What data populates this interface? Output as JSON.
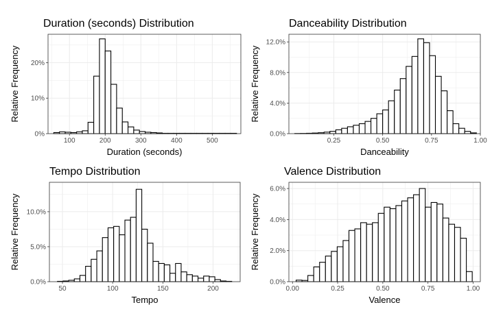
{
  "chart_data": [
    {
      "type": "bar",
      "title": "Duration (seconds) Distribution",
      "xlabel": "Duration (seconds)",
      "ylabel": "Relative Frequency",
      "xlim": [
        40,
        580
      ],
      "ylim": [
        0,
        0.28
      ],
      "xticks": [
        100,
        200,
        300,
        400,
        500
      ],
      "xtick_labels": [
        "100",
        "200",
        "300",
        "400",
        "500"
      ],
      "yticks": [
        0,
        0.1,
        0.2
      ],
      "ytick_labels": [
        "0%",
        "10%",
        "20%"
      ],
      "bin_edges": [
        56,
        72,
        88,
        104,
        120,
        136,
        152,
        168,
        184,
        200,
        216,
        232,
        248,
        264,
        280,
        296,
        312,
        328,
        344,
        360,
        376,
        392,
        408,
        424,
        440,
        456,
        472,
        488,
        504,
        520,
        536,
        552,
        568
      ],
      "values": [
        0.003,
        0.005,
        0.004,
        0.003,
        0.005,
        0.008,
        0.032,
        0.162,
        0.267,
        0.233,
        0.139,
        0.072,
        0.033,
        0.019,
        0.01,
        0.006,
        0.004,
        0.003,
        0.002,
        0.001,
        0.001,
        0.001,
        0.001,
        0.001,
        0.001,
        0.001,
        0.001,
        0.001,
        0.001,
        0.001,
        0.001,
        0.001
      ],
      "grid": true
    },
    {
      "type": "bar",
      "title": "Danceability Distribution",
      "xlabel": "Danceability",
      "ylabel": "Relative Frequency",
      "xlim": [
        0.02,
        1.0
      ],
      "ylim": [
        0,
        0.13
      ],
      "xticks": [
        0.25,
        0.5,
        0.75,
        1.0
      ],
      "xtick_labels": [
        "0.25",
        "0.50",
        "0.75",
        "1.00"
      ],
      "yticks": [
        0,
        0.04,
        0.08,
        0.12
      ],
      "ytick_labels": [
        "0.0%",
        "4.0%",
        "8.0%",
        "12.0%"
      ],
      "bin_edges": [
        0.05,
        0.08,
        0.11,
        0.14,
        0.17,
        0.2,
        0.23,
        0.26,
        0.29,
        0.32,
        0.35,
        0.38,
        0.41,
        0.44,
        0.47,
        0.5,
        0.53,
        0.56,
        0.59,
        0.62,
        0.65,
        0.68,
        0.71,
        0.74,
        0.77,
        0.8,
        0.83,
        0.86,
        0.89,
        0.92,
        0.95,
        0.98
      ],
      "values": [
        0.0002,
        0.0003,
        0.0005,
        0.0008,
        0.0012,
        0.002,
        0.003,
        0.005,
        0.007,
        0.009,
        0.011,
        0.013,
        0.016,
        0.02,
        0.026,
        0.031,
        0.043,
        0.057,
        0.072,
        0.088,
        0.101,
        0.124,
        0.119,
        0.102,
        0.075,
        0.056,
        0.03,
        0.013,
        0.007,
        0.003,
        0.001
      ],
      "grid": true
    },
    {
      "type": "bar",
      "title": "Tempo Distribution",
      "xlabel": "Tempo",
      "ylabel": "Relative Frequency",
      "xlim": [
        37,
        227
      ],
      "ylim": [
        0,
        0.142
      ],
      "xticks": [
        50,
        100,
        150,
        200
      ],
      "xtick_labels": [
        "50",
        "100",
        "150",
        "200"
      ],
      "yticks": [
        0,
        0.05,
        0.1
      ],
      "ytick_labels": [
        "0.0%",
        "5.0%",
        "10.0%"
      ],
      "bin_edges": [
        45,
        50.6,
        56.2,
        61.8,
        67.4,
        73,
        78.6,
        84.2,
        89.8,
        95.4,
        101,
        106.6,
        112.2,
        117.8,
        123.4,
        129,
        134.6,
        140.2,
        145.8,
        151.4,
        157,
        162.6,
        168.2,
        173.8,
        179.4,
        185,
        190.6,
        196.2,
        201.8,
        207.4,
        213,
        218.6
      ],
      "values": [
        0.0005,
        0.001,
        0.002,
        0.004,
        0.009,
        0.022,
        0.032,
        0.044,
        0.063,
        0.077,
        0.079,
        0.067,
        0.088,
        0.092,
        0.132,
        0.075,
        0.055,
        0.029,
        0.026,
        0.024,
        0.012,
        0.026,
        0.014,
        0.01,
        0.008,
        0.005,
        0.008,
        0.007,
        0.003,
        0.001,
        0.0005
      ],
      "grid": true
    },
    {
      "type": "bar",
      "title": "Valence Distribution",
      "xlabel": "Valence",
      "ylabel": "Relative Frequency",
      "xlim": [
        -0.02,
        1.04
      ],
      "ylim": [
        0,
        0.064
      ],
      "xticks": [
        0,
        0.25,
        0.5,
        0.75,
        1.0
      ],
      "xtick_labels": [
        "0.00",
        "0.25",
        "0.50",
        "0.75",
        "1.00"
      ],
      "yticks": [
        0,
        0.02,
        0.04,
        0.06
      ],
      "ytick_labels": [
        "0.0%",
        "2.0%",
        "4.0%",
        "6.0%"
      ],
      "bin_edges": [
        0.02,
        0.0525,
        0.085,
        0.1175,
        0.15,
        0.1825,
        0.215,
        0.2475,
        0.28,
        0.3125,
        0.345,
        0.3775,
        0.41,
        0.4425,
        0.475,
        0.5075,
        0.54,
        0.5725,
        0.605,
        0.6375,
        0.67,
        0.7025,
        0.735,
        0.7675,
        0.8,
        0.8325,
        0.865,
        0.8975,
        0.93,
        0.9625,
        0.995
      ],
      "values": [
        0.001,
        0.0008,
        0.004,
        0.0095,
        0.0125,
        0.0165,
        0.0195,
        0.0225,
        0.0265,
        0.033,
        0.034,
        0.038,
        0.037,
        0.038,
        0.044,
        0.048,
        0.047,
        0.049,
        0.052,
        0.054,
        0.056,
        0.06,
        0.048,
        0.051,
        0.05,
        0.041,
        0.037,
        0.035,
        0.028,
        0.0065
      ],
      "grid": true
    }
  ]
}
